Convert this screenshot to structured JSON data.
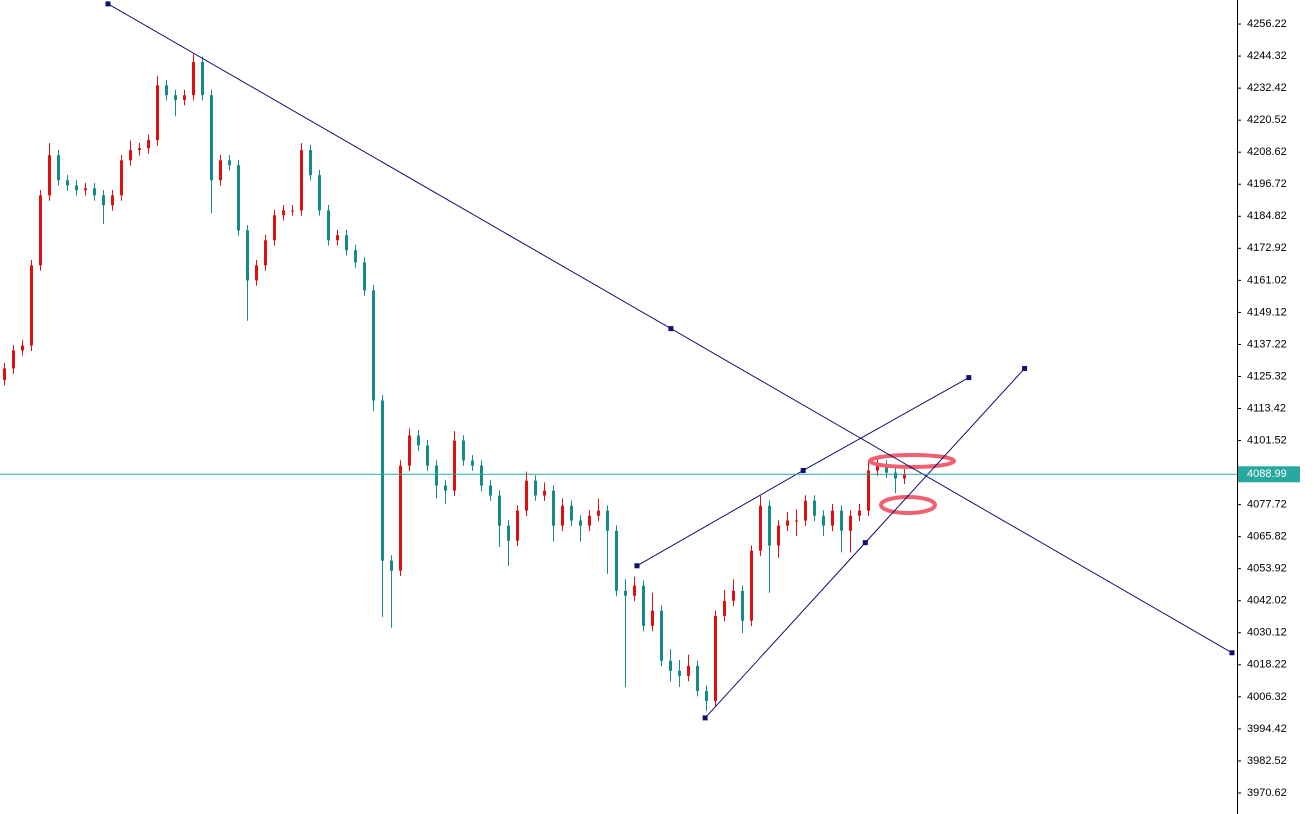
{
  "chart_data": {
    "type": "candlestick",
    "ylim": [
      3962.81,
      4265.15
    ],
    "yticks": [
      4256.22,
      4244.32,
      4232.42,
      4220.52,
      4208.62,
      4196.72,
      4184.82,
      4172.92,
      4161.02,
      4149.12,
      4137.22,
      4125.32,
      4113.42,
      4101.52,
      4077.72,
      4065.82,
      4053.92,
      4042.02,
      4030.12,
      4018.22,
      4006.32,
      3994.42,
      3982.52,
      3970.62
    ],
    "current_price": 4088.99,
    "up_color": "#e01010",
    "down_color": "#158a86",
    "price_line_color": "#28a8a0",
    "trendline_color": "#10106e",
    "open": [
      4124.0,
      4128.3,
      4135.0,
      4136.8,
      4166.6,
      4192.6,
      4207.5,
      4198.2,
      4196.3,
      4194.5,
      4195.2,
      4192.6,
      4188.9,
      4192.6,
      4205.6,
      4209.4,
      4210.1,
      4213.1,
      4233.5,
      4229.8,
      4228.0,
      4229.8,
      4242.1,
      4229.8,
      4198.2,
      4205.6,
      4203.8,
      4179.6,
      4161.0,
      4166.6,
      4175.9,
      4185.2,
      4187.0,
      4187.0,
      4209.4,
      4200.1,
      4187.0,
      4175.9,
      4177.8,
      4172.2,
      4167.7,
      4157.3,
      4116.4,
      4056.9,
      4053.2,
      4092.2,
      4103.4,
      4099.7,
      4092.2,
      4084.8,
      4082.9,
      4101.5,
      4094.1,
      4092.2,
      4084.8,
      4081.1,
      4069.9,
      4064.3,
      4075.5,
      4086.6,
      4081.1,
      4082.9,
      4069.9,
      4077.3,
      4071.8,
      4069.9,
      4073.6,
      4075.5,
      4068.0,
      4045.7,
      4043.9,
      4047.6,
      4032.7,
      4038.3,
      4019.7,
      4016.0,
      4014.1,
      4017.8,
      4008.5,
      4004.8,
      4036.4,
      4042.0,
      4045.7,
      4034.6,
      4060.6,
      4077.3,
      4062.5,
      4069.9,
      4071.8,
      4071.8,
      4079.2,
      4073.6,
      4069.9,
      4075.5,
      4068.0,
      4073.6,
      4075.5,
      4090.4,
      4092.2,
      4089.6,
      4087.4
    ],
    "high": [
      4130.3,
      4137.0,
      4138.8,
      4168.6,
      4194.6,
      4212.0,
      4209.5,
      4200.2,
      4198.3,
      4197.2,
      4197.2,
      4194.6,
      4194.6,
      4207.6,
      4213.0,
      4212.1,
      4215.1,
      4237.0,
      4235.5,
      4231.8,
      4231.8,
      4245.0,
      4244.1,
      4231.8,
      4207.6,
      4207.6,
      4205.8,
      4181.6,
      4168.6,
      4177.9,
      4187.2,
      4189.0,
      4189.0,
      4212.0,
      4211.4,
      4202.1,
      4189.0,
      4179.8,
      4179.8,
      4174.2,
      4169.7,
      4159.3,
      4118.4,
      4058.9,
      4094.2,
      4106.0,
      4105.4,
      4101.7,
      4094.2,
      4086.8,
      4105.0,
      4103.5,
      4096.1,
      4094.2,
      4086.8,
      4083.1,
      4071.9,
      4077.5,
      4090.0,
      4088.6,
      4086.0,
      4084.9,
      4080.0,
      4079.3,
      4073.8,
      4075.6,
      4080.0,
      4077.5,
      4070.0,
      4050.0,
      4051.0,
      4049.6,
      4045.0,
      4040.3,
      4024.0,
      4020.0,
      4022.0,
      4019.8,
      4010.5,
      4038.4,
      4046.0,
      4050.0,
      4047.7,
      4062.6,
      4081.0,
      4079.3,
      4071.9,
      4075.0,
      4076.0,
      4081.2,
      4081.2,
      4075.6,
      4078.0,
      4077.5,
      4075.6,
      4078.0,
      4094.0,
      4095.0,
      4094.2,
      4091.6,
      4090.9
    ],
    "low": [
      4122.0,
      4126.3,
      4133.0,
      4134.8,
      4164.6,
      4190.6,
      4196.2,
      4194.3,
      4192.5,
      4192.5,
      4190.6,
      4182.0,
      4186.9,
      4190.6,
      4203.6,
      4207.4,
      4208.1,
      4211.1,
      4227.8,
      4222.0,
      4226.0,
      4227.8,
      4227.8,
      4186.0,
      4196.2,
      4201.8,
      4177.6,
      4146.0,
      4159.0,
      4164.6,
      4173.9,
      4183.2,
      4185.0,
      4185.0,
      4198.1,
      4185.0,
      4173.9,
      4173.9,
      4170.2,
      4165.7,
      4155.3,
      4112.4,
      4036.0,
      4032.0,
      4051.2,
      4090.2,
      4097.7,
      4090.2,
      4080.0,
      4078.0,
      4080.9,
      4092.1,
      4090.2,
      4082.8,
      4079.1,
      4062.0,
      4055.0,
      4062.3,
      4073.5,
      4079.1,
      4079.1,
      4064.0,
      4067.9,
      4069.8,
      4064.0,
      4067.9,
      4071.6,
      4052.0,
      4043.7,
      4010.0,
      4041.9,
      4030.7,
      4030.7,
      4017.7,
      4012.0,
      4010.0,
      4012.1,
      4006.5,
      4001.0,
      4002.8,
      4034.4,
      4040.0,
      4030.0,
      4032.6,
      4058.6,
      4045.0,
      4058.0,
      4067.9,
      4066.0,
      4069.8,
      4071.6,
      4066.0,
      4067.9,
      4060.0,
      4060.0,
      4071.6,
      4073.5,
      4088.4,
      4087.6,
      4082.0,
      4085.4
    ],
    "close": [
      4128.3,
      4135.0,
      4136.8,
      4166.6,
      4192.6,
      4207.5,
      4198.2,
      4196.3,
      4194.5,
      4195.2,
      4192.6,
      4188.9,
      4192.6,
      4205.6,
      4209.4,
      4210.1,
      4213.1,
      4233.5,
      4229.8,
      4228.0,
      4229.8,
      4242.1,
      4229.8,
      4198.2,
      4205.6,
      4203.8,
      4179.6,
      4161.0,
      4166.6,
      4175.9,
      4185.2,
      4187.0,
      4187.0,
      4209.4,
      4200.1,
      4187.0,
      4175.9,
      4177.8,
      4172.2,
      4167.7,
      4157.3,
      4116.4,
      4056.9,
      4053.2,
      4092.2,
      4103.4,
      4099.7,
      4092.2,
      4084.8,
      4082.9,
      4101.5,
      4094.1,
      4092.2,
      4084.8,
      4081.1,
      4069.9,
      4064.3,
      4075.5,
      4086.6,
      4081.1,
      4082.9,
      4069.9,
      4077.3,
      4071.8,
      4069.9,
      4073.6,
      4075.5,
      4068.0,
      4045.7,
      4043.9,
      4047.6,
      4032.7,
      4038.3,
      4019.7,
      4016.0,
      4014.1,
      4017.8,
      4008.5,
      4004.8,
      4036.4,
      4042.0,
      4045.7,
      4034.6,
      4060.6,
      4077.3,
      4062.5,
      4069.9,
      4071.8,
      4071.8,
      4079.2,
      4073.6,
      4069.9,
      4075.5,
      4068.0,
      4073.6,
      4075.5,
      4090.4,
      4092.2,
      4089.6,
      4087.4,
      4088.9
    ],
    "trendlines": [
      {
        "x": [
          11.56,
          74.1,
          136.44
        ],
        "y": [
          4263.7,
          4143.1,
          4022.7
        ]
      },
      {
        "x": [
          70.33,
          88.8,
          107.2
        ],
        "y": [
          4055.0,
          4090.4,
          4124.9
        ]
      },
      {
        "x": [
          77.9,
          95.7,
          113.4
        ],
        "y": [
          3998.5,
          4063.6,
          4128.3
        ]
      }
    ]
  }
}
